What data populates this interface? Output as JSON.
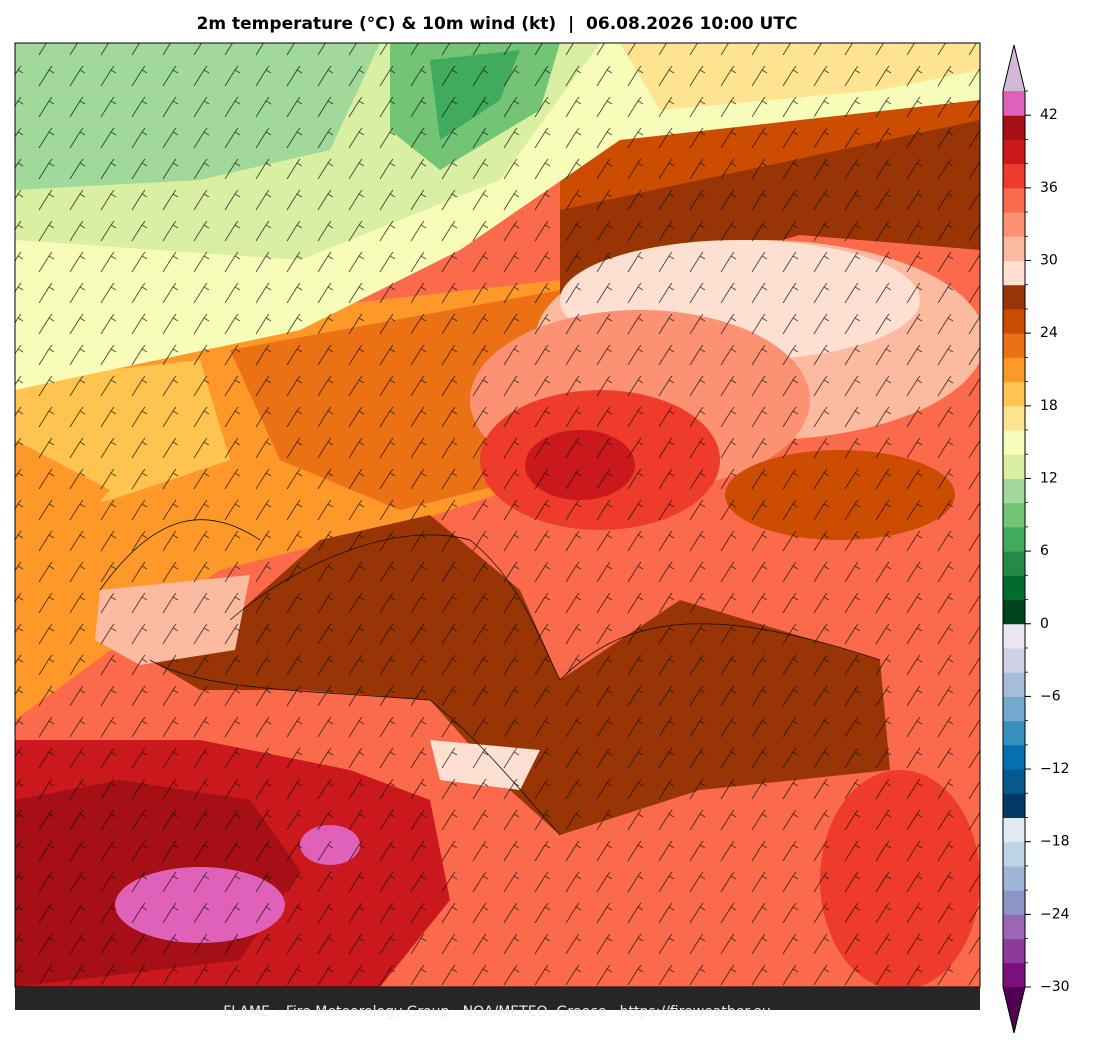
{
  "title": "2m temperature (°C) & 10m wind (kt)  |  06.08.2026 10:00 UTC",
  "footer": "FLAME – Fire Meteorology Group · NOA/METEO, Greece · https://fireweather.eu",
  "colorbar": {
    "clim": [
      -30,
      44
    ],
    "ticks": [
      {
        "value": -30,
        "label": "−30"
      },
      {
        "value": -24,
        "label": "−24"
      },
      {
        "value": -18,
        "label": "−18"
      },
      {
        "value": -12,
        "label": "−12"
      },
      {
        "value": -6,
        "label": "−6"
      },
      0,
      6,
      12,
      18,
      24,
      30,
      36,
      42
    ],
    "colors": [
      "#7b0f7b",
      "#8e3a9c",
      "#9a66b5",
      "#8c96c6",
      "#9fb6d8",
      "#bfd3e6",
      "#dfeaf3",
      "#003a66",
      "#045a8d",
      "#0570b0",
      "#3690c0",
      "#74a9cf",
      "#a6bddb",
      "#d0d1e6",
      "#ece7f2",
      "#00441b",
      "#006d2c",
      "#238b45",
      "#41ab5d",
      "#74c476",
      "#a1d99b",
      "#d9f0a3",
      "#f7fcb9",
      "#fee391",
      "#fec44f",
      "#fe9929",
      "#ec7014",
      "#cc4c02",
      "#993404",
      "#fee0d2",
      "#fcbba1",
      "#fc9272",
      "#fb6a4a",
      "#ef3b2c",
      "#cb181d",
      "#a50f15",
      "#e062b8"
    ],
    "extend_colors": [
      "#500050",
      "#d4b8d8"
    ]
  }
}
